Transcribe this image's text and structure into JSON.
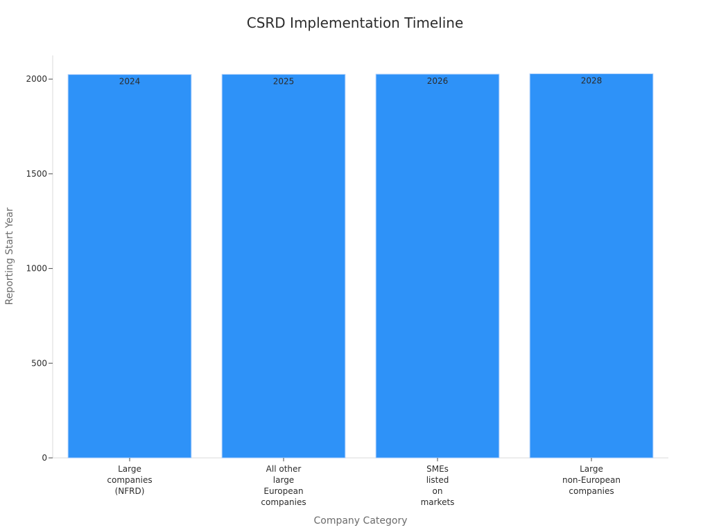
{
  "chart_data": {
    "type": "bar",
    "title": "CSRD Implementation Timeline",
    "xlabel": "Company Category",
    "ylabel": "Reporting Start Year",
    "categories": [
      [
        "Large",
        "companies",
        "(NFRD)"
      ],
      [
        "All other",
        "large",
        "European",
        "companies"
      ],
      [
        "SMEs",
        "listed",
        "on",
        "markets"
      ],
      [
        "Large",
        "non-European",
        "companies"
      ]
    ],
    "values": [
      2024,
      2025,
      2026,
      2028
    ],
    "data_labels": [
      "2024",
      "2025",
      "2026",
      "2028"
    ],
    "ylim": [
      0,
      2125
    ],
    "yticks": [
      0,
      500,
      1000,
      1500,
      2000
    ],
    "grid": false,
    "legend": "none",
    "colors": {
      "bar": "#2e92f8",
      "bar_edge": "#a9cdfb",
      "axis": "#d9d9d9",
      "tick": "#4a4a4a",
      "text": "#2b2b2b",
      "axis_title": "#6b6b6b"
    }
  }
}
